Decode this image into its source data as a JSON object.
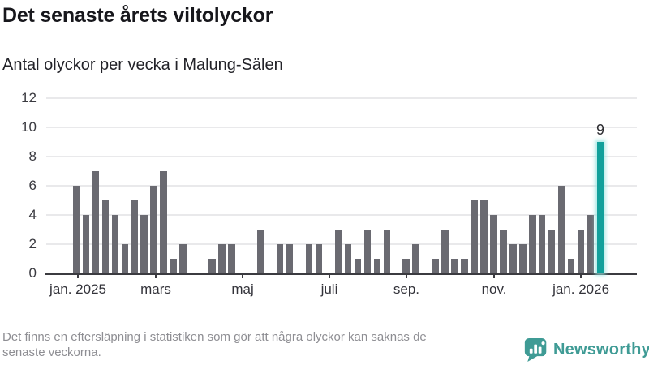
{
  "header": {
    "title": "Det senaste årets viltolyckor",
    "subtitle": "Antal olyckor per vecka i Malung-Sälen"
  },
  "chart_data": {
    "type": "bar",
    "title": "Det senaste årets viltolyckor",
    "subtitle": "Antal olyckor per vecka i Malung-Sälen",
    "x_unit": "vecka (week), jan. 2025 – jan. 2026",
    "y_unit": "antal olyckor",
    "values": [
      6,
      4,
      7,
      5,
      4,
      2,
      5,
      4,
      6,
      7,
      1,
      2,
      0,
      0,
      1,
      2,
      2,
      0,
      0,
      3,
      0,
      2,
      2,
      0,
      2,
      2,
      0,
      3,
      2,
      1,
      3,
      1,
      3,
      0,
      1,
      2,
      0,
      1,
      3,
      1,
      1,
      5,
      5,
      4,
      3,
      2,
      2,
      4,
      4,
      3,
      6,
      1,
      3,
      4,
      9
    ],
    "highlight_index": 54,
    "highlight_value_label": "9",
    "ylim": [
      0,
      12
    ],
    "yticks": [
      0,
      2,
      4,
      6,
      8,
      10,
      12
    ],
    "xticks": [
      {
        "label": "jan. 2025",
        "week": 0.17
      },
      {
        "label": "mars",
        "week": 8.19
      },
      {
        "label": "maj",
        "week": 17.14
      },
      {
        "label": "juli",
        "week": 26.08
      },
      {
        "label": "sep.",
        "week": 34.02
      },
      {
        "label": "nov.",
        "week": 43.05
      },
      {
        "label": "jan. 2026",
        "week": 52.0
      }
    ],
    "grid": true,
    "legend": "none"
  },
  "colors": {
    "bar": "#6a6a71",
    "highlight_bar": "#12a09b",
    "highlight_glow": "#bdecea",
    "gridline": "#e9e9eb",
    "axis": "#3b3b40",
    "brand_teal": "#3f9b95"
  },
  "footer": {
    "note_lines": [
      "Det finns en eftersläpning i statistiken som gör att några olyckor kan saknas de",
      "senaste veckorna."
    ],
    "brand": "Newsworthy"
  }
}
